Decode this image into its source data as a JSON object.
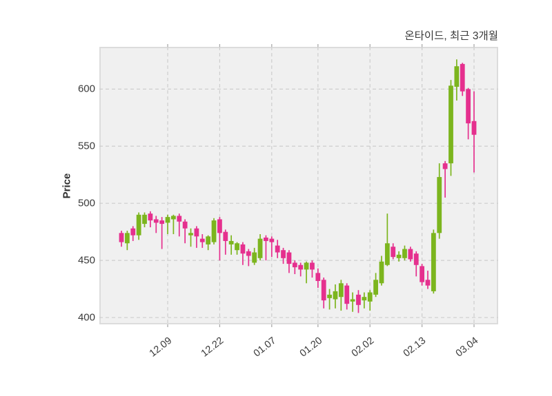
{
  "title": "온타이드, 최근 3개월",
  "chart_data": {
    "type": "candlestick",
    "title": "온타이드, 최근 3개월",
    "ylabel": "Price",
    "y_ticks": [
      400,
      450,
      500,
      550,
      600
    ],
    "ylim": [
      394,
      637
    ],
    "x_tick_labels": [
      "12.09",
      "12.22",
      "01.07",
      "01.20",
      "02.02",
      "02.13",
      "03.04"
    ],
    "x_tick_indices": [
      8,
      17,
      26,
      34,
      43,
      52,
      61
    ],
    "grid": "dashed",
    "legend": "none",
    "colors": {
      "up": "#7cb51e",
      "down": "#e5308e",
      "plot_background": "#f0f0f0",
      "grid_line": "#cdcdcd",
      "axis_text": "#3a3a3a",
      "tick_mark": "#aaaaaa"
    },
    "candles_format": [
      "open",
      "high",
      "low",
      "close"
    ],
    "candles": [
      [
        474,
        476,
        462,
        466
      ],
      [
        465,
        476,
        459,
        474
      ],
      [
        478,
        480,
        467,
        472
      ],
      [
        472,
        492,
        468,
        490
      ],
      [
        482,
        492,
        479,
        490
      ],
      [
        491,
        493,
        479,
        485
      ],
      [
        486,
        489,
        474,
        483
      ],
      [
        485,
        488,
        460,
        482
      ],
      [
        483,
        490,
        473,
        488
      ],
      [
        486,
        490,
        473,
        489
      ],
      [
        489,
        491,
        471,
        484
      ],
      [
        484,
        486,
        465,
        478
      ],
      [
        472,
        478,
        462,
        474
      ],
      [
        478,
        480,
        461,
        471
      ],
      [
        469,
        473,
        461,
        466
      ],
      [
        464,
        472,
        459,
        471
      ],
      [
        466,
        487,
        464,
        485
      ],
      [
        486,
        488,
        450,
        474
      ],
      [
        475,
        477,
        455,
        467
      ],
      [
        464,
        472,
        455,
        467
      ],
      [
        459,
        466,
        455,
        465
      ],
      [
        464,
        466,
        446,
        456
      ],
      [
        458,
        460,
        445,
        454
      ],
      [
        448,
        461,
        446,
        457
      ],
      [
        452,
        473,
        450,
        469
      ],
      [
        470,
        472,
        450,
        467
      ],
      [
        469,
        471,
        453,
        466
      ],
      [
        463,
        468,
        452,
        457
      ],
      [
        459,
        461,
        447,
        452
      ],
      [
        457,
        459,
        439,
        447
      ],
      [
        448,
        450,
        438,
        444
      ],
      [
        446,
        448,
        436,
        442
      ],
      [
        442,
        449,
        430,
        448
      ],
      [
        448,
        450,
        435,
        442
      ],
      [
        439,
        443,
        426,
        432
      ],
      [
        433,
        435,
        408,
        415
      ],
      [
        417,
        425,
        407,
        420
      ],
      [
        416,
        429,
        408,
        423
      ],
      [
        418,
        433,
        406,
        430
      ],
      [
        428,
        430,
        407,
        412
      ],
      [
        414,
        422,
        405,
        416
      ],
      [
        420,
        424,
        404,
        411
      ],
      [
        415,
        422,
        408,
        418
      ],
      [
        414,
        424,
        406,
        422
      ],
      [
        420,
        439,
        418,
        433
      ],
      [
        430,
        454,
        428,
        449
      ],
      [
        446,
        491,
        445,
        465
      ],
      [
        462,
        465,
        451,
        453
      ],
      [
        452,
        458,
        449,
        455
      ],
      [
        452,
        463,
        450,
        460
      ],
      [
        460,
        462,
        449,
        451
      ],
      [
        456,
        458,
        436,
        446
      ],
      [
        445,
        447,
        428,
        431
      ],
      [
        433,
        441,
        425,
        428
      ],
      [
        423,
        477,
        421,
        474
      ],
      [
        474,
        535,
        469,
        523
      ],
      [
        535,
        537,
        505,
        530
      ],
      [
        535,
        608,
        524,
        603
      ],
      [
        602,
        626,
        590,
        620
      ],
      [
        622,
        623,
        594,
        598
      ],
      [
        600,
        601,
        556,
        570
      ],
      [
        572,
        598,
        527,
        560
      ]
    ]
  }
}
